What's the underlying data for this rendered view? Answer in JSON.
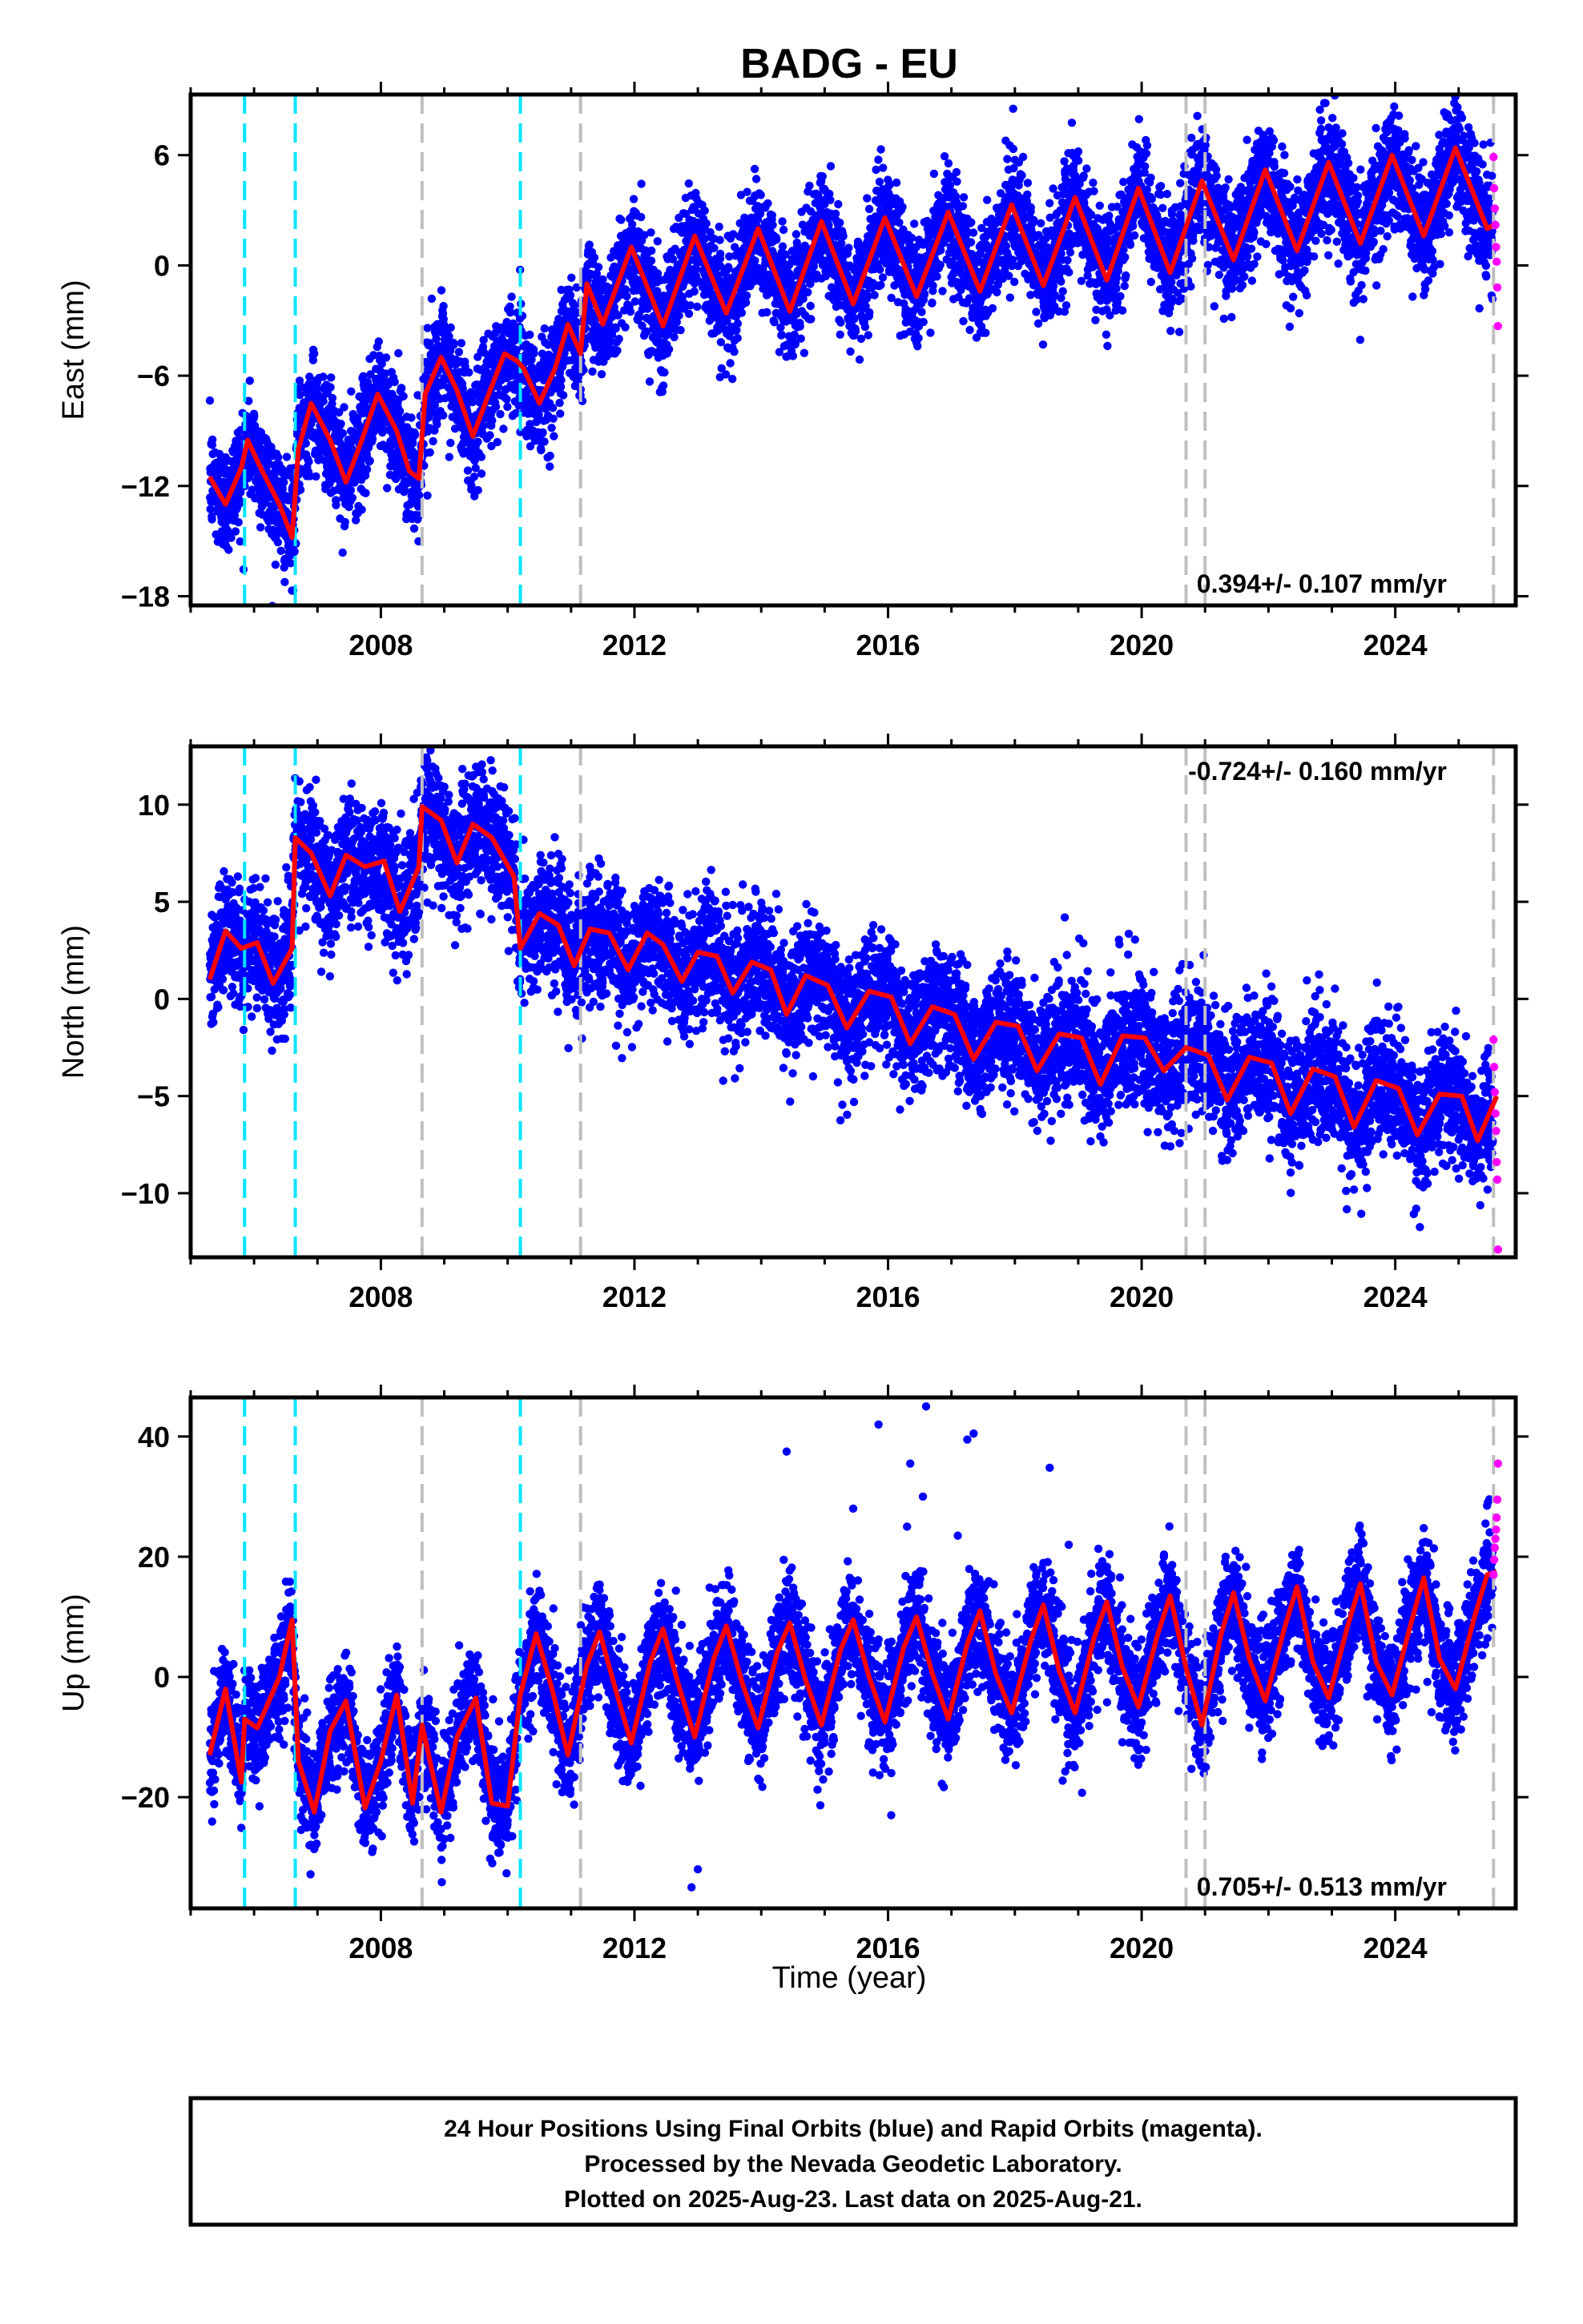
{
  "title": "BADG - EU",
  "xlabel": "Time (year)",
  "footer": [
    "24 Hour Positions Using Final Orbits (blue) and Rapid Orbits (magenta).",
    "Processed by the Nevada Geodetic Laboratory.",
    "Plotted on 2025-Aug-23. Last data on 2025-Aug-21."
  ],
  "colors": {
    "final_orbits": "#0000ff",
    "rapid_orbits": "#ff00ff",
    "model": "#ff0000",
    "equipment_change": "#bfbfbf",
    "earthquake": "#00e5ff"
  },
  "chart_data": [
    {
      "type": "scatter",
      "ylabel": "East (mm)",
      "xlim": [
        2005.0,
        2025.9
      ],
      "ylim": [
        -18.5,
        9.3
      ],
      "xticks": [
        2008,
        2012,
        2016,
        2020,
        2024
      ],
      "yticks": [
        -18,
        -12,
        -6,
        0,
        6
      ],
      "rate": "0.394+/- 0.107 mm/yr",
      "rate_position": "bottom-right",
      "grid": false,
      "vlines_cyan": [
        2005.85,
        2006.65,
        2010.2
      ],
      "vlines_gray": [
        2008.65,
        2011.15,
        2020.7,
        2021.0,
        2025.55
      ],
      "model_line": {
        "x": [
          2005.3,
          2005.55,
          2005.8,
          2005.9,
          2006.1,
          2006.4,
          2006.6,
          2006.7,
          2006.9,
          2007.2,
          2007.45,
          2007.7,
          2007.95,
          2008.25,
          2008.45,
          2008.6,
          2008.7,
          2008.95,
          2009.2,
          2009.45,
          2009.7,
          2009.95,
          2010.15,
          2010.25,
          2010.5,
          2010.75,
          2010.95,
          2011.15,
          2011.25,
          2011.5,
          2011.95,
          2012.45,
          2012.95,
          2013.45,
          2013.95,
          2014.45,
          2014.95,
          2015.45,
          2015.95,
          2016.45,
          2016.95,
          2017.45,
          2017.95,
          2018.45,
          2018.95,
          2019.45,
          2019.95,
          2020.45,
          2020.95,
          2021.45,
          2021.95,
          2022.45,
          2022.95,
          2023.45,
          2023.95,
          2024.45,
          2024.95,
          2025.45,
          2025.6
        ],
        "y": [
          -11.5,
          -13.0,
          -11.0,
          -9.5,
          -11.0,
          -13.0,
          -14.8,
          -10.0,
          -7.5,
          -9.5,
          -11.8,
          -9.5,
          -7.0,
          -9.0,
          -11.2,
          -11.6,
          -7.0,
          -5.0,
          -6.8,
          -9.3,
          -7.0,
          -4.8,
          -5.2,
          -5.6,
          -7.5,
          -5.6,
          -3.2,
          -4.8,
          -1.0,
          -3.2,
          1.0,
          -3.3,
          1.6,
          -2.6,
          2.0,
          -2.5,
          2.4,
          -2.1,
          2.6,
          -1.7,
          2.9,
          -1.4,
          3.3,
          -1.1,
          3.7,
          -0.8,
          4.2,
          -0.4,
          4.6,
          0.3,
          5.2,
          0.8,
          5.6,
          1.2,
          6.0,
          1.6,
          6.4,
          2.0,
          2.3
        ]
      },
      "rapid_points": {
        "x": [
          2025.55,
          2025.56,
          2025.57,
          2025.58,
          2025.59,
          2025.6,
          2025.61,
          2025.62
        ],
        "y": [
          5.9,
          4.2,
          3.1,
          2.2,
          1.0,
          0.2,
          -1.2,
          -3.3
        ]
      }
    },
    {
      "type": "scatter",
      "ylabel": "North (mm)",
      "xlim": [
        2005.0,
        2025.9
      ],
      "ylim": [
        -13.3,
        13.0
      ],
      "xticks": [
        2008,
        2012,
        2016,
        2020,
        2024
      ],
      "yticks": [
        -10,
        -5,
        0,
        5,
        10
      ],
      "rate": "-0.724+/- 0.160 mm/yr",
      "rate_position": "top-right",
      "grid": false,
      "vlines_cyan": [
        2005.85,
        2006.65,
        2010.2
      ],
      "vlines_gray": [
        2008.65,
        2011.15,
        2020.7,
        2021.0,
        2025.55
      ],
      "model_line": {
        "x": [
          2005.3,
          2005.55,
          2005.8,
          2006.05,
          2006.3,
          2006.6,
          2006.65,
          2006.9,
          2007.2,
          2007.45,
          2007.75,
          2008.05,
          2008.3,
          2008.6,
          2008.65,
          2008.95,
          2009.2,
          2009.45,
          2009.75,
          2010.1,
          2010.2,
          2010.5,
          2010.8,
          2011.05,
          2011.3,
          2011.6,
          2011.9,
          2012.2,
          2012.45,
          2012.75,
          2013.0,
          2013.3,
          2013.55,
          2013.85,
          2014.15,
          2014.4,
          2014.7,
          2015.05,
          2015.35,
          2015.7,
          2016.05,
          2016.35,
          2016.7,
          2017.05,
          2017.35,
          2017.7,
          2018.05,
          2018.35,
          2018.7,
          2019.05,
          2019.35,
          2019.7,
          2020.05,
          2020.35,
          2020.7,
          2021.05,
          2021.35,
          2021.7,
          2022.05,
          2022.35,
          2022.7,
          2023.05,
          2023.35,
          2023.7,
          2024.05,
          2024.35,
          2024.7,
          2025.05,
          2025.3,
          2025.6
        ],
        "y": [
          1.0,
          3.5,
          2.6,
          2.9,
          0.8,
          2.6,
          8.3,
          7.5,
          5.3,
          7.4,
          6.8,
          7.1,
          4.5,
          6.8,
          9.9,
          9.2,
          7.0,
          9.0,
          8.3,
          6.3,
          2.6,
          4.4,
          3.8,
          1.7,
          3.6,
          3.4,
          1.5,
          3.4,
          2.8,
          0.9,
          2.4,
          2.2,
          0.3,
          1.9,
          1.5,
          -0.8,
          1.2,
          0.7,
          -1.5,
          0.4,
          0.1,
          -2.3,
          -0.4,
          -0.8,
          -3.1,
          -1.2,
          -1.4,
          -3.7,
          -1.8,
          -2.0,
          -4.4,
          -1.9,
          -2.0,
          -3.7,
          -2.5,
          -2.9,
          -5.2,
          -3.0,
          -3.3,
          -5.9,
          -3.6,
          -4.0,
          -6.6,
          -4.2,
          -4.6,
          -7.0,
          -4.9,
          -5.0,
          -7.3,
          -5.0
        ]
      },
      "rapid_points": {
        "x": [
          2025.55,
          2025.56,
          2025.57,
          2025.58,
          2025.59,
          2025.6,
          2025.61,
          2025.62
        ],
        "y": [
          -2.1,
          -3.5,
          -4.8,
          -5.9,
          -6.8,
          -8.4,
          -9.3,
          -12.9
        ]
      }
    },
    {
      "type": "scatter",
      "ylabel": "Up (mm)",
      "xlim": [
        2005.0,
        2025.9
      ],
      "ylim": [
        -38.5,
        46.5
      ],
      "xticks": [
        2008,
        2012,
        2016,
        2020,
        2024
      ],
      "yticks": [
        -20,
        0,
        20,
        40
      ],
      "rate": "0.705+/- 0.513 mm/yr",
      "rate_position": "bottom-right",
      "grid": false,
      "vlines_cyan": [
        2005.85,
        2006.65,
        2010.2
      ],
      "vlines_gray": [
        2008.65,
        2011.15,
        2020.7,
        2021.0,
        2025.55
      ],
      "model_line": {
        "x": [
          2005.3,
          2005.55,
          2005.8,
          2005.85,
          2006.05,
          2006.4,
          2006.6,
          2006.7,
          2006.95,
          2007.2,
          2007.45,
          2007.75,
          2008.0,
          2008.25,
          2008.5,
          2008.65,
          2008.95,
          2009.2,
          2009.5,
          2009.75,
          2010.0,
          2010.2,
          2010.45,
          2010.7,
          2010.95,
          2011.25,
          2011.45,
          2011.7,
          2011.95,
          2012.25,
          2012.45,
          2012.7,
          2012.95,
          2013.25,
          2013.45,
          2013.7,
          2013.95,
          2014.25,
          2014.45,
          2014.7,
          2014.95,
          2015.25,
          2015.45,
          2015.7,
          2015.95,
          2016.25,
          2016.45,
          2016.7,
          2016.95,
          2017.25,
          2017.45,
          2017.7,
          2017.95,
          2018.25,
          2018.45,
          2018.7,
          2018.95,
          2019.25,
          2019.45,
          2019.7,
          2019.95,
          2020.25,
          2020.45,
          2020.7,
          2020.95,
          2021.25,
          2021.45,
          2021.7,
          2021.95,
          2022.25,
          2022.45,
          2022.7,
          2022.95,
          2023.25,
          2023.45,
          2023.7,
          2023.95,
          2024.25,
          2024.45,
          2024.7,
          2024.95,
          2025.25,
          2025.45,
          2025.6
        ],
        "y": [
          -13.0,
          -2.0,
          -17.5,
          -7.0,
          -8.5,
          0.0,
          9.5,
          -14.0,
          -22.5,
          -9.0,
          -4.0,
          -21.8,
          -14.0,
          -3.0,
          -21.0,
          -8.0,
          -22.5,
          -10.0,
          -3.5,
          -21.0,
          -21.5,
          -3.0,
          7.2,
          -2.0,
          -13.0,
          2.0,
          7.5,
          -2.0,
          -11.0,
          2.5,
          8.0,
          -1.5,
          -10.0,
          3.0,
          8.5,
          -1.0,
          -8.5,
          4.0,
          9.0,
          -0.5,
          -8.0,
          4.5,
          9.5,
          0.0,
          -7.5,
          5.0,
          10.0,
          0.5,
          -7.0,
          5.5,
          11.0,
          0.5,
          -6.0,
          6.0,
          12.0,
          1.0,
          -6.0,
          6.5,
          12.5,
          1.5,
          -5.0,
          7.0,
          13.5,
          1.5,
          -8.0,
          7.0,
          14.0,
          3.0,
          -4.0,
          8.0,
          15.0,
          2.5,
          -3.5,
          8.5,
          15.5,
          2.5,
          -3.0,
          9.0,
          16.5,
          3.0,
          -2.0,
          10.0,
          17.0,
          17.5
        ]
      },
      "rapid_points": {
        "x": [
          2025.55,
          2025.56,
          2025.57,
          2025.58,
          2025.59,
          2025.6,
          2025.61,
          2025.62
        ],
        "y": [
          17.0,
          19.5,
          21.5,
          23.0,
          24.5,
          26.5,
          29.5,
          35.5
        ]
      },
      "outliers": {
        "x": [
          2014.4,
          2015.45,
          2015.85,
          2016.3,
          2016.35,
          2016.55,
          2016.6,
          2017.1,
          2017.25,
          2017.35,
          2018.55,
          2018.85,
          2012.9,
          2013.0,
          2016.05
        ],
        "y": [
          37.5,
          28.0,
          42.0,
          25.0,
          35.5,
          30.0,
          45.0,
          23.5,
          39.5,
          40.5,
          34.8,
          22.0,
          -35.0,
          -32.0,
          -23.0
        ]
      }
    }
  ]
}
